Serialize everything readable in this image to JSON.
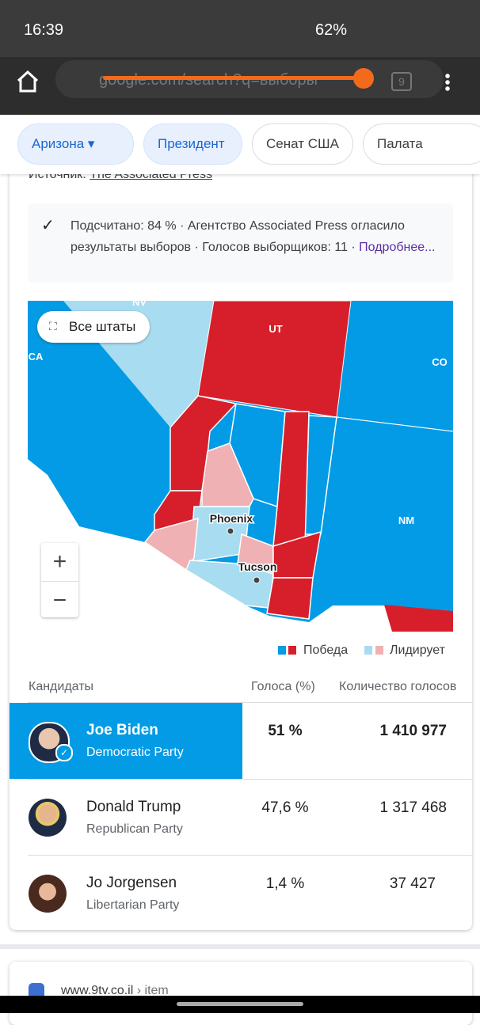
{
  "status_bar": {
    "time": "16:39",
    "battery": "62%"
  },
  "browser": {
    "url": "google.com/search?q=выборы",
    "tabs": "9"
  },
  "filters": [
    "Аризона",
    "Президент",
    "Сенат США",
    "Палата предста"
  ],
  "source": {
    "label": "Источник:",
    "name": "The Associated Press"
  },
  "notice": {
    "text": "Подсчитано: 84 % · Агентство Associated Press огласило результаты выборов · Голосов выборщиков: 11 · ",
    "link": "Подробнее..."
  },
  "map": {
    "button": "Все штаты",
    "states": [
      "NV",
      "UT",
      "CA",
      "CO",
      "NM"
    ],
    "cities": [
      "Phoenix",
      "Tucson"
    ]
  },
  "legend": {
    "win": "Победа",
    "leading": "Лидирует"
  },
  "table": {
    "headers": [
      "Кандидаты",
      "Голоса (%)",
      "Количество голосов"
    ],
    "rows": [
      {
        "name": "Joe Biden",
        "party": "Democratic Party",
        "percent": "51 %",
        "votes": "1 410 977"
      },
      {
        "name": "Donald Trump",
        "party": "Republican Party",
        "percent": "47,6 %",
        "votes": "1 317 468"
      },
      {
        "name": "Jo Jorgensen",
        "party": "Libertarian Party",
        "percent": "1,4 %",
        "votes": "37 427"
      }
    ]
  },
  "next_result": {
    "site": "www.9tv.co.il",
    "path": "› item"
  }
}
